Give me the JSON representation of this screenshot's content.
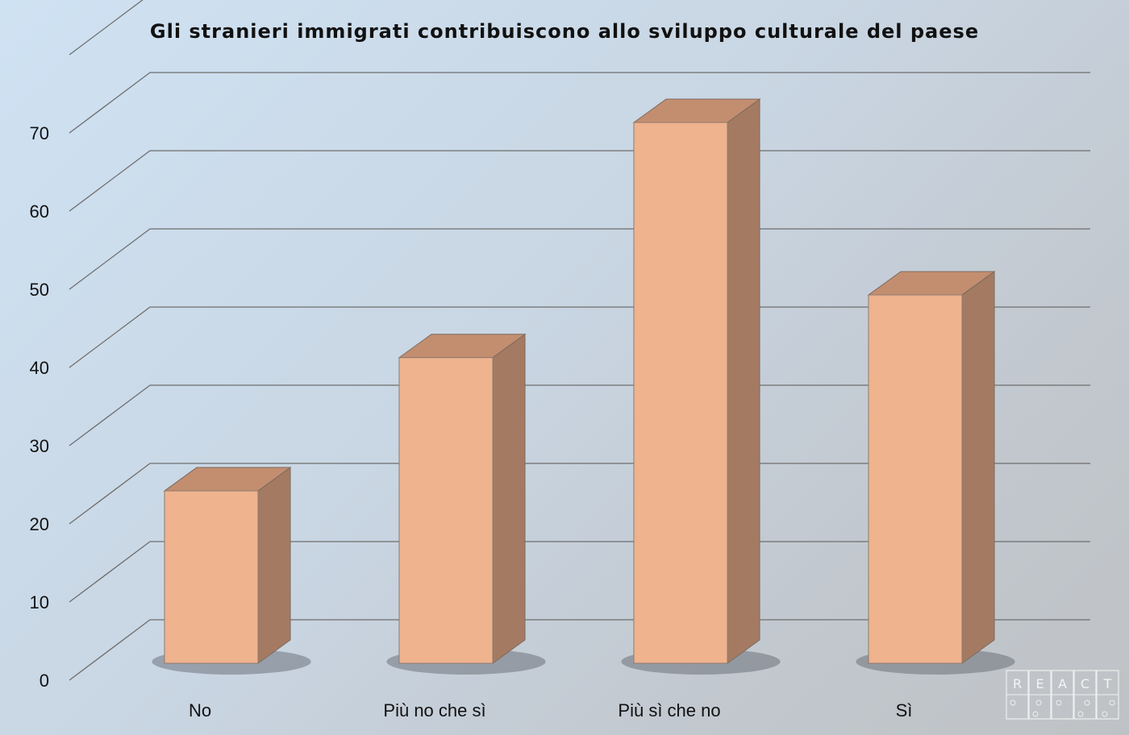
{
  "chart_data": {
    "type": "bar",
    "title": "Gli stranieri immigrati contribuiscono allo sviluppo culturale del paese",
    "categories": [
      "No",
      "Più no che sì",
      "Più sì che no",
      "Sì"
    ],
    "values": [
      22,
      39,
      69,
      47
    ],
    "ylim": [
      0,
      70
    ],
    "yticks": [
      0,
      10,
      20,
      30,
      40,
      50,
      60,
      70
    ],
    "xlabel": "",
    "ylabel": "",
    "grid": true,
    "style": "3d-column",
    "colors": {
      "front": "#efb38e",
      "top": "#c38e70",
      "side": "#a47b62"
    }
  },
  "logo": {
    "letters": [
      "R",
      "E",
      "A",
      "C",
      "T"
    ]
  }
}
